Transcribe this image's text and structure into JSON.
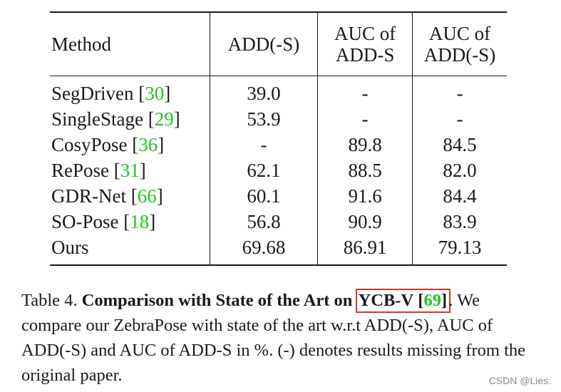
{
  "table": {
    "headers": {
      "method": "Method",
      "add_s": "ADD(-S)",
      "auc_add_s_line1": "AUC of",
      "auc_add_s_line2": "ADD-S",
      "auc_add_s_paren_line1": "AUC of",
      "auc_add_s_paren_line2": "ADD(-S)"
    },
    "rows": [
      {
        "method": "SegDriven",
        "cite": "30",
        "add_s": "39.0",
        "auc_add_s": "-",
        "auc_add_s_paren": "-"
      },
      {
        "method": "SingleStage",
        "cite": "29",
        "add_s": "53.9",
        "auc_add_s": "-",
        "auc_add_s_paren": "-"
      },
      {
        "method": "CosyPose",
        "cite": "36",
        "add_s": "-",
        "auc_add_s": "89.8",
        "auc_add_s_paren": "84.5"
      },
      {
        "method": "RePose",
        "cite": "31",
        "add_s": "62.1",
        "auc_add_s": "88.5",
        "auc_add_s_paren": "82.0"
      },
      {
        "method": "GDR-Net",
        "cite": "66",
        "add_s": "60.1",
        "auc_add_s": "91.6",
        "auc_add_s_paren": "84.4"
      },
      {
        "method": "SO-Pose",
        "cite": "18",
        "add_s": "56.8",
        "auc_add_s": "90.9",
        "auc_add_s_paren": "83.9"
      },
      {
        "method": "Ours",
        "cite": "",
        "add_s": "69.68",
        "auc_add_s": "86.91",
        "auc_add_s_paren": "79.13"
      }
    ],
    "bold_cells": [
      "CosyPose.auc_add_s_paren",
      "GDR-Net.auc_add_s",
      "Ours.add_s"
    ]
  },
  "caption": {
    "label": "Table 4.",
    "bold_title": "Comparison with State of the Art on",
    "dataset": "YCB-V",
    "dataset_cite": "69",
    "body": "We compare our ZebraPose with state of the art w.r.t ADD(-S), AUC of ADD(-S) and AUC of ADD-S in %. (-) denotes results missing from the original paper."
  },
  "colors": {
    "citation": "#22c422",
    "highlight_box": "#d6362f"
  },
  "watermark": "CSDN @Lies."
}
